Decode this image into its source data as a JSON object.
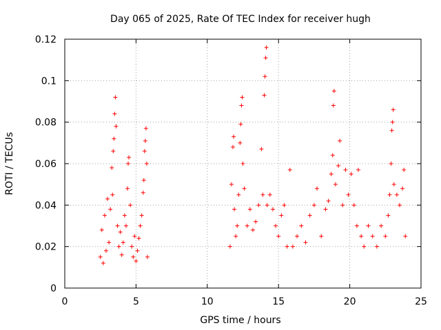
{
  "chart_data": {
    "type": "scatter",
    "title": "Day 065 of 2025, Rate Of TEC Index for receiver hugh",
    "xlabel": "GPS time / hours",
    "ylabel": "ROTI / TECUs",
    "xlim": [
      0,
      25
    ],
    "ylim": [
      0,
      0.12
    ],
    "grid": true,
    "marker": "+",
    "color": "#ff0000",
    "xticks": [
      0,
      5,
      10,
      15,
      20,
      25
    ],
    "xtick_labels": [
      "0",
      "5",
      "10",
      "15",
      "20",
      "25"
    ],
    "yticks": [
      0,
      0.02,
      0.04,
      0.06,
      0.08,
      0.1,
      0.12
    ],
    "ytick_labels": [
      "0",
      "0.02",
      "0.04",
      "0.06",
      "0.08",
      "0.1",
      "0.12"
    ],
    "series": [
      {
        "points": [
          [
            2.5,
            0.015
          ],
          [
            2.6,
            0.028
          ],
          [
            2.7,
            0.012
          ],
          [
            2.8,
            0.035
          ],
          [
            2.9,
            0.018
          ],
          [
            3.0,
            0.043
          ],
          [
            3.1,
            0.022
          ],
          [
            3.2,
            0.038
          ],
          [
            3.3,
            0.058
          ],
          [
            3.35,
            0.045
          ],
          [
            3.4,
            0.066
          ],
          [
            3.45,
            0.072
          ],
          [
            3.5,
            0.084
          ],
          [
            3.55,
            0.092
          ],
          [
            3.6,
            0.078
          ],
          [
            3.7,
            0.03
          ],
          [
            3.8,
            0.02
          ],
          [
            3.9,
            0.027
          ],
          [
            4.0,
            0.016
          ],
          [
            4.1,
            0.022
          ],
          [
            4.2,
            0.035
          ],
          [
            4.3,
            0.03
          ],
          [
            4.4,
            0.048
          ],
          [
            4.45,
            0.06
          ],
          [
            4.5,
            0.063
          ],
          [
            4.6,
            0.04
          ],
          [
            4.7,
            0.02
          ],
          [
            4.8,
            0.015
          ],
          [
            4.9,
            0.025
          ],
          [
            5.0,
            0.013
          ],
          [
            5.1,
            0.018
          ],
          [
            5.2,
            0.024
          ],
          [
            5.3,
            0.03
          ],
          [
            5.4,
            0.035
          ],
          [
            5.5,
            0.046
          ],
          [
            5.55,
            0.052
          ],
          [
            5.6,
            0.066
          ],
          [
            5.65,
            0.071
          ],
          [
            5.7,
            0.077
          ],
          [
            5.75,
            0.06
          ],
          [
            5.8,
            0.015
          ],
          [
            11.6,
            0.02
          ],
          [
            11.7,
            0.05
          ],
          [
            11.8,
            0.068
          ],
          [
            11.85,
            0.073
          ],
          [
            11.9,
            0.038
          ],
          [
            12.0,
            0.025
          ],
          [
            12.1,
            0.03
          ],
          [
            12.2,
            0.045
          ],
          [
            12.3,
            0.07
          ],
          [
            12.35,
            0.079
          ],
          [
            12.4,
            0.088
          ],
          [
            12.45,
            0.092
          ],
          [
            12.5,
            0.06
          ],
          [
            12.6,
            0.048
          ],
          [
            12.8,
            0.03
          ],
          [
            13.0,
            0.038
          ],
          [
            13.2,
            0.028
          ],
          [
            13.4,
            0.032
          ],
          [
            13.6,
            0.04
          ],
          [
            13.8,
            0.067
          ],
          [
            13.9,
            0.045
          ],
          [
            14.0,
            0.093
          ],
          [
            14.05,
            0.102
          ],
          [
            14.1,
            0.111
          ],
          [
            14.15,
            0.116
          ],
          [
            14.2,
            0.04
          ],
          [
            14.4,
            0.045
          ],
          [
            14.6,
            0.038
          ],
          [
            14.8,
            0.03
          ],
          [
            15.0,
            0.025
          ],
          [
            15.2,
            0.035
          ],
          [
            15.4,
            0.04
          ],
          [
            15.6,
            0.02
          ],
          [
            15.8,
            0.057
          ],
          [
            16.0,
            0.02
          ],
          [
            16.3,
            0.025
          ],
          [
            16.6,
            0.03
          ],
          [
            16.9,
            0.022
          ],
          [
            17.2,
            0.035
          ],
          [
            17.5,
            0.04
          ],
          [
            17.7,
            0.048
          ],
          [
            18.0,
            0.025
          ],
          [
            18.3,
            0.038
          ],
          [
            18.5,
            0.042
          ],
          [
            18.7,
            0.055
          ],
          [
            18.8,
            0.064
          ],
          [
            18.85,
            0.088
          ],
          [
            18.9,
            0.095
          ],
          [
            19.0,
            0.05
          ],
          [
            19.2,
            0.059
          ],
          [
            19.3,
            0.071
          ],
          [
            19.5,
            0.04
          ],
          [
            19.7,
            0.057
          ],
          [
            19.9,
            0.045
          ],
          [
            20.1,
            0.055
          ],
          [
            20.3,
            0.04
          ],
          [
            20.5,
            0.03
          ],
          [
            20.6,
            0.057
          ],
          [
            20.8,
            0.025
          ],
          [
            21.0,
            0.02
          ],
          [
            21.3,
            0.03
          ],
          [
            21.6,
            0.025
          ],
          [
            21.9,
            0.02
          ],
          [
            22.2,
            0.03
          ],
          [
            22.5,
            0.025
          ],
          [
            22.7,
            0.035
          ],
          [
            22.8,
            0.045
          ],
          [
            22.9,
            0.06
          ],
          [
            22.95,
            0.076
          ],
          [
            23.0,
            0.08
          ],
          [
            23.05,
            0.086
          ],
          [
            23.1,
            0.05
          ],
          [
            23.3,
            0.045
          ],
          [
            23.5,
            0.04
          ],
          [
            23.7,
            0.048
          ],
          [
            23.8,
            0.057
          ],
          [
            23.9,
            0.025
          ]
        ]
      }
    ]
  }
}
